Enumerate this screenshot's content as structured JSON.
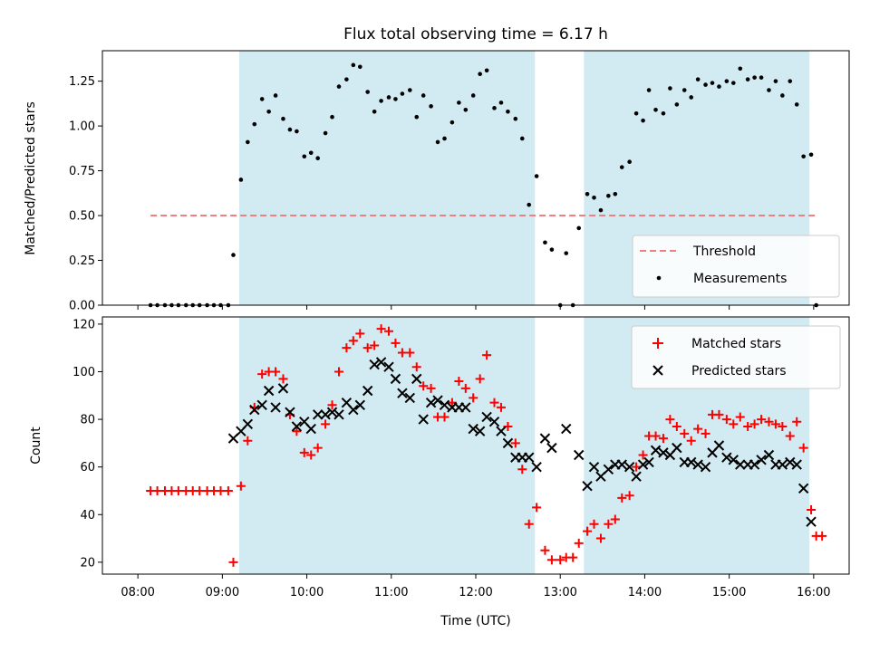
{
  "chart_data": {
    "type": "scatter",
    "title": "Flux total observing time = 6.17 h",
    "xlabel": "Time (UTC)",
    "x_ticks": [
      "08:00",
      "09:00",
      "10:00",
      "11:00",
      "12:00",
      "13:00",
      "14:00",
      "15:00",
      "16:00"
    ],
    "x_range_hours": [
      7.58,
      16.42
    ],
    "shaded_intervals_hours": [
      [
        9.2,
        12.7
      ],
      [
        13.28,
        15.95
      ]
    ],
    "shade_color": "#add8e6",
    "top_panel": {
      "ylabel": "Matched/Predicted stars",
      "ylim": [
        0,
        1.42
      ],
      "yticks": [
        "0.00",
        "0.25",
        "0.50",
        "0.75",
        "1.00",
        "1.25"
      ],
      "threshold": {
        "name": "Threshold",
        "value": 0.5,
        "x_range": [
          8.15,
          16.05
        ],
        "color": "#f08080"
      },
      "legend": {
        "threshold_label": "Threshold",
        "measurements_label": "Measurements",
        "placement": "lower-right"
      },
      "measurements": [
        [
          8.15,
          0
        ],
        [
          8.23,
          0
        ],
        [
          8.32,
          0
        ],
        [
          8.4,
          0
        ],
        [
          8.48,
          0
        ],
        [
          8.57,
          0
        ],
        [
          8.65,
          0
        ],
        [
          8.73,
          0
        ],
        [
          8.82,
          0
        ],
        [
          8.9,
          0
        ],
        [
          8.98,
          0
        ],
        [
          9.07,
          0
        ],
        [
          9.13,
          0.28
        ],
        [
          9.22,
          0.7
        ],
        [
          9.3,
          0.91
        ],
        [
          9.38,
          1.01
        ],
        [
          9.47,
          1.15
        ],
        [
          9.55,
          1.08
        ],
        [
          9.63,
          1.17
        ],
        [
          9.72,
          1.04
        ],
        [
          9.8,
          0.98
        ],
        [
          9.88,
          0.97
        ],
        [
          9.97,
          0.83
        ],
        [
          10.05,
          0.85
        ],
        [
          10.13,
          0.82
        ],
        [
          10.22,
          0.96
        ],
        [
          10.3,
          1.05
        ],
        [
          10.38,
          1.22
        ],
        [
          10.47,
          1.26
        ],
        [
          10.55,
          1.34
        ],
        [
          10.63,
          1.33
        ],
        [
          10.72,
          1.19
        ],
        [
          10.8,
          1.08
        ],
        [
          10.88,
          1.14
        ],
        [
          10.97,
          1.16
        ],
        [
          11.05,
          1.15
        ],
        [
          11.13,
          1.18
        ],
        [
          11.22,
          1.2
        ],
        [
          11.3,
          1.05
        ],
        [
          11.38,
          1.17
        ],
        [
          11.47,
          1.11
        ],
        [
          11.55,
          0.91
        ],
        [
          11.63,
          0.93
        ],
        [
          11.72,
          1.02
        ],
        [
          11.8,
          1.13
        ],
        [
          11.88,
          1.09
        ],
        [
          11.97,
          1.17
        ],
        [
          12.05,
          1.29
        ],
        [
          12.13,
          1.31
        ],
        [
          12.22,
          1.1
        ],
        [
          12.3,
          1.13
        ],
        [
          12.38,
          1.08
        ],
        [
          12.47,
          1.04
        ],
        [
          12.55,
          0.93
        ],
        [
          12.63,
          0.56
        ],
        [
          12.72,
          0.72
        ],
        [
          12.82,
          0.35
        ],
        [
          12.9,
          0.31
        ],
        [
          13.0,
          0
        ],
        [
          13.07,
          0.29
        ],
        [
          13.15,
          0
        ],
        [
          13.22,
          0.43
        ],
        [
          13.32,
          0.62
        ],
        [
          13.4,
          0.6
        ],
        [
          13.48,
          0.53
        ],
        [
          13.57,
          0.61
        ],
        [
          13.65,
          0.62
        ],
        [
          13.73,
          0.77
        ],
        [
          13.82,
          0.8
        ],
        [
          13.9,
          1.07
        ],
        [
          13.98,
          1.03
        ],
        [
          14.05,
          1.2
        ],
        [
          14.13,
          1.09
        ],
        [
          14.22,
          1.07
        ],
        [
          14.3,
          1.21
        ],
        [
          14.38,
          1.12
        ],
        [
          14.47,
          1.2
        ],
        [
          14.55,
          1.16
        ],
        [
          14.63,
          1.26
        ],
        [
          14.72,
          1.23
        ],
        [
          14.8,
          1.24
        ],
        [
          14.88,
          1.22
        ],
        [
          14.97,
          1.25
        ],
        [
          15.05,
          1.24
        ],
        [
          15.13,
          1.32
        ],
        [
          15.22,
          1.26
        ],
        [
          15.3,
          1.27
        ],
        [
          15.38,
          1.27
        ],
        [
          15.47,
          1.2
        ],
        [
          15.55,
          1.25
        ],
        [
          15.63,
          1.17
        ],
        [
          15.72,
          1.25
        ],
        [
          15.8,
          1.12
        ],
        [
          15.88,
          0.83
        ],
        [
          15.97,
          0.84
        ],
        [
          16.03,
          0
        ]
      ]
    },
    "bottom_panel": {
      "ylabel": "Count",
      "ylim": [
        15,
        123
      ],
      "yticks": [
        "20",
        "40",
        "60",
        "80",
        "100",
        "120"
      ],
      "legend": {
        "matched_label": "Matched stars",
        "predicted_label": "Predicted stars",
        "placement": "upper-right"
      },
      "series": [
        {
          "name": "Matched stars",
          "marker": "plus",
          "color": "#ff0000",
          "points": [
            [
              8.15,
              50
            ],
            [
              8.23,
              50
            ],
            [
              8.32,
              50
            ],
            [
              8.4,
              50
            ],
            [
              8.48,
              50
            ],
            [
              8.57,
              50
            ],
            [
              8.65,
              50
            ],
            [
              8.73,
              50
            ],
            [
              8.82,
              50
            ],
            [
              8.9,
              50
            ],
            [
              8.98,
              50
            ],
            [
              9.07,
              50
            ],
            [
              9.13,
              20
            ],
            [
              9.22,
              52
            ],
            [
              9.3,
              71
            ],
            [
              9.38,
              85
            ],
            [
              9.47,
              99
            ],
            [
              9.55,
              100
            ],
            [
              9.63,
              100
            ],
            [
              9.72,
              97
            ],
            [
              9.8,
              82
            ],
            [
              9.88,
              75
            ],
            [
              9.97,
              66
            ],
            [
              10.05,
              65
            ],
            [
              10.13,
              68
            ],
            [
              10.22,
              78
            ],
            [
              10.3,
              86
            ],
            [
              10.38,
              100
            ],
            [
              10.47,
              110
            ],
            [
              10.55,
              113
            ],
            [
              10.63,
              116
            ],
            [
              10.72,
              110
            ],
            [
              10.8,
              111
            ],
            [
              10.88,
              118
            ],
            [
              10.97,
              117
            ],
            [
              11.05,
              112
            ],
            [
              11.13,
              108
            ],
            [
              11.22,
              108
            ],
            [
              11.3,
              102
            ],
            [
              11.38,
              94
            ],
            [
              11.47,
              93
            ],
            [
              11.55,
              81
            ],
            [
              11.63,
              81
            ],
            [
              11.72,
              87
            ],
            [
              11.8,
              96
            ],
            [
              11.88,
              93
            ],
            [
              11.97,
              89
            ],
            [
              12.05,
              97
            ],
            [
              12.13,
              107
            ],
            [
              12.22,
              87
            ],
            [
              12.3,
              85
            ],
            [
              12.38,
              77
            ],
            [
              12.47,
              70
            ],
            [
              12.55,
              59
            ],
            [
              12.63,
              36
            ],
            [
              12.72,
              43
            ],
            [
              12.82,
              25
            ],
            [
              12.9,
              21
            ],
            [
              13.0,
              21
            ],
            [
              13.07,
              22
            ],
            [
              13.15,
              22
            ],
            [
              13.22,
              28
            ],
            [
              13.32,
              33
            ],
            [
              13.4,
              36
            ],
            [
              13.48,
              30
            ],
            [
              13.57,
              36
            ],
            [
              13.65,
              38
            ],
            [
              13.73,
              47
            ],
            [
              13.82,
              48
            ],
            [
              13.9,
              60
            ],
            [
              13.98,
              65
            ],
            [
              14.05,
              73
            ],
            [
              14.13,
              73
            ],
            [
              14.22,
              72
            ],
            [
              14.3,
              80
            ],
            [
              14.38,
              77
            ],
            [
              14.47,
              74
            ],
            [
              14.55,
              71
            ],
            [
              14.63,
              76
            ],
            [
              14.72,
              74
            ],
            [
              14.8,
              82
            ],
            [
              14.88,
              82
            ],
            [
              14.97,
              80
            ],
            [
              15.05,
              78
            ],
            [
              15.13,
              81
            ],
            [
              15.22,
              77
            ],
            [
              15.3,
              78
            ],
            [
              15.38,
              80
            ],
            [
              15.47,
              79
            ],
            [
              15.55,
              78
            ],
            [
              15.63,
              77
            ],
            [
              15.72,
              73
            ],
            [
              15.8,
              79
            ],
            [
              15.88,
              68
            ],
            [
              15.97,
              42
            ],
            [
              16.03,
              31
            ],
            [
              16.1,
              31
            ]
          ]
        },
        {
          "name": "Predicted stars",
          "marker": "x",
          "color": "#000000",
          "points": [
            [
              9.13,
              72
            ],
            [
              9.22,
              75
            ],
            [
              9.3,
              78
            ],
            [
              9.38,
              84
            ],
            [
              9.47,
              86
            ],
            [
              9.55,
              92
            ],
            [
              9.63,
              85
            ],
            [
              9.72,
              93
            ],
            [
              9.8,
              83
            ],
            [
              9.88,
              77
            ],
            [
              9.97,
              79
            ],
            [
              10.05,
              76
            ],
            [
              10.13,
              82
            ],
            [
              10.22,
              82
            ],
            [
              10.3,
              83
            ],
            [
              10.38,
              82
            ],
            [
              10.47,
              87
            ],
            [
              10.55,
              84
            ],
            [
              10.63,
              86
            ],
            [
              10.72,
              92
            ],
            [
              10.8,
              103
            ],
            [
              10.88,
              104
            ],
            [
              10.97,
              102
            ],
            [
              11.05,
              97
            ],
            [
              11.13,
              91
            ],
            [
              11.22,
              89
            ],
            [
              11.3,
              97
            ],
            [
              11.38,
              80
            ],
            [
              11.47,
              87
            ],
            [
              11.55,
              88
            ],
            [
              11.63,
              86
            ],
            [
              11.72,
              85
            ],
            [
              11.8,
              85
            ],
            [
              11.88,
              85
            ],
            [
              11.97,
              76
            ],
            [
              12.05,
              75
            ],
            [
              12.13,
              81
            ],
            [
              12.22,
              79
            ],
            [
              12.3,
              75
            ],
            [
              12.38,
              70
            ],
            [
              12.47,
              64
            ],
            [
              12.55,
              64
            ],
            [
              12.63,
              64
            ],
            [
              12.72,
              60
            ],
            [
              12.82,
              72
            ],
            [
              12.9,
              68
            ],
            [
              13.07,
              76
            ],
            [
              13.22,
              65
            ],
            [
              13.32,
              52
            ],
            [
              13.4,
              60
            ],
            [
              13.48,
              56
            ],
            [
              13.57,
              59
            ],
            [
              13.65,
              61
            ],
            [
              13.73,
              61
            ],
            [
              13.82,
              60
            ],
            [
              13.9,
              56
            ],
            [
              13.98,
              61
            ],
            [
              14.05,
              62
            ],
            [
              14.13,
              67
            ],
            [
              14.22,
              66
            ],
            [
              14.3,
              65
            ],
            [
              14.38,
              68
            ],
            [
              14.47,
              62
            ],
            [
              14.55,
              62
            ],
            [
              14.63,
              61
            ],
            [
              14.72,
              60
            ],
            [
              14.8,
              66
            ],
            [
              14.88,
              69
            ],
            [
              14.97,
              64
            ],
            [
              15.05,
              63
            ],
            [
              15.13,
              61
            ],
            [
              15.22,
              61
            ],
            [
              15.3,
              61
            ],
            [
              15.38,
              63
            ],
            [
              15.47,
              65
            ],
            [
              15.55,
              61
            ],
            [
              15.63,
              61
            ],
            [
              15.72,
              62
            ],
            [
              15.8,
              61
            ],
            [
              15.88,
              51
            ],
            [
              15.97,
              37
            ]
          ]
        }
      ]
    }
  }
}
